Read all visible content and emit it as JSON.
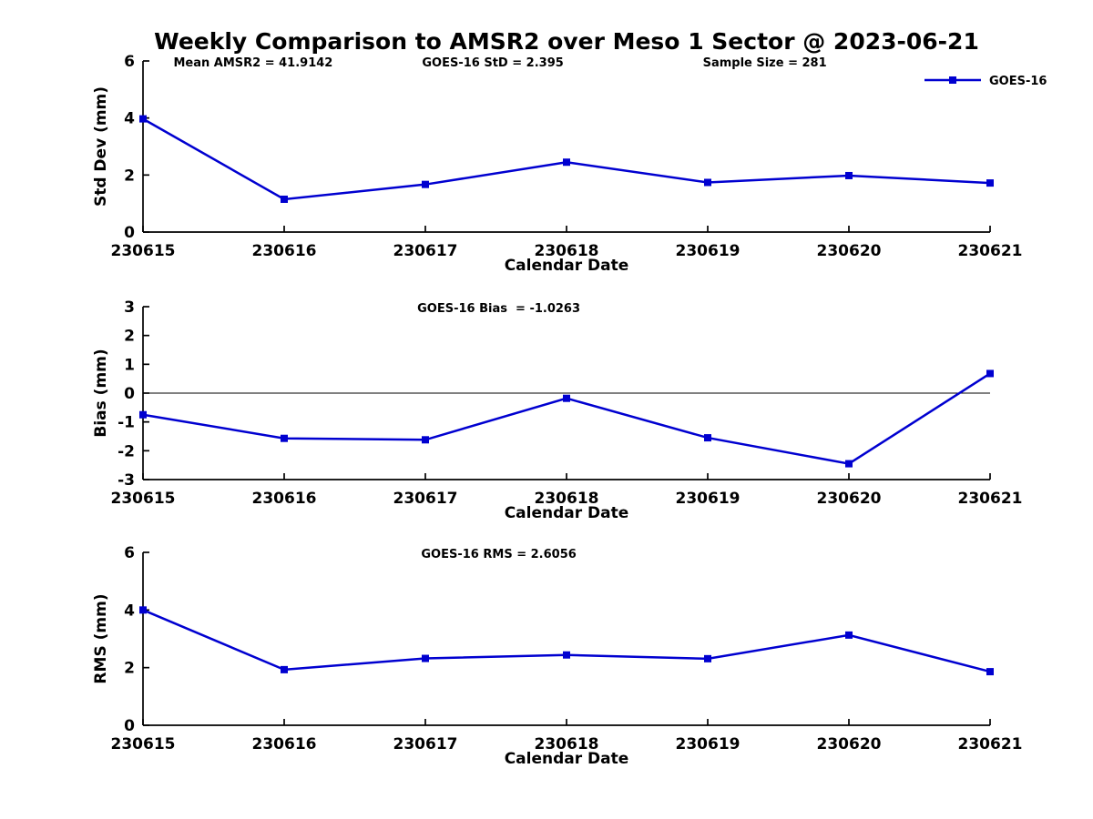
{
  "page": {
    "title": "Weekly Comparison to AMSR2 over Meso 1 Sector @ 2023-06-21",
    "background": "#ffffff"
  },
  "style": {
    "line_color": "#0000D0",
    "marker_color": "#0000D0",
    "axis_color": "#000000",
    "zero_line_color": "#000000",
    "text_color": "#000000"
  },
  "chart_data": [
    {
      "type": "line",
      "id": "std-dev",
      "annotations": [
        "Mean AMSR2 = 41.9142",
        "GOES-16 StD = 2.395",
        "Sample Size = 281"
      ],
      "categories": [
        "230615",
        "230616",
        "230617",
        "230618",
        "230619",
        "230620",
        "230621"
      ],
      "series": [
        {
          "name": "GOES-16",
          "values": [
            3.97,
            1.15,
            1.67,
            2.45,
            1.74,
            1.98,
            1.72
          ]
        }
      ],
      "xlabel": "Calendar Date",
      "ylabel": "Std Dev (mm)",
      "ylim": [
        0,
        6
      ],
      "yticks": [
        0,
        2,
        4,
        6
      ],
      "legend": {
        "visible": true,
        "label": "GOES-16",
        "position": "top-right"
      },
      "zero_line": false,
      "grid": false
    },
    {
      "type": "line",
      "id": "bias",
      "annotations": [
        "GOES-16 Bias  = -1.0263"
      ],
      "categories": [
        "230615",
        "230616",
        "230617",
        "230618",
        "230619",
        "230620",
        "230621"
      ],
      "series": [
        {
          "name": "GOES-16",
          "values": [
            -0.75,
            -1.57,
            -1.62,
            -0.18,
            -1.55,
            -2.45,
            0.68
          ]
        }
      ],
      "xlabel": "Calendar Date",
      "ylabel": "Bias (mm)",
      "ylim": [
        -3,
        3
      ],
      "yticks": [
        -3,
        -2,
        -1,
        0,
        1,
        2,
        3
      ],
      "legend": {
        "visible": false,
        "label": "GOES-16",
        "position": "top-right"
      },
      "zero_line": true,
      "grid": false
    },
    {
      "type": "line",
      "id": "rms",
      "annotations": [
        "GOES-16 RMS = 2.6056"
      ],
      "categories": [
        "230615",
        "230616",
        "230617",
        "230618",
        "230619",
        "230620",
        "230621"
      ],
      "series": [
        {
          "name": "GOES-16",
          "values": [
            4.0,
            1.93,
            2.32,
            2.44,
            2.31,
            3.13,
            1.86
          ]
        }
      ],
      "xlabel": "Calendar Date",
      "ylabel": "RMS (mm)",
      "ylim": [
        0,
        6
      ],
      "yticks": [
        0,
        2,
        4,
        6
      ],
      "legend": {
        "visible": false,
        "label": "GOES-16",
        "position": "top-right"
      },
      "zero_line": false,
      "grid": false
    }
  ]
}
